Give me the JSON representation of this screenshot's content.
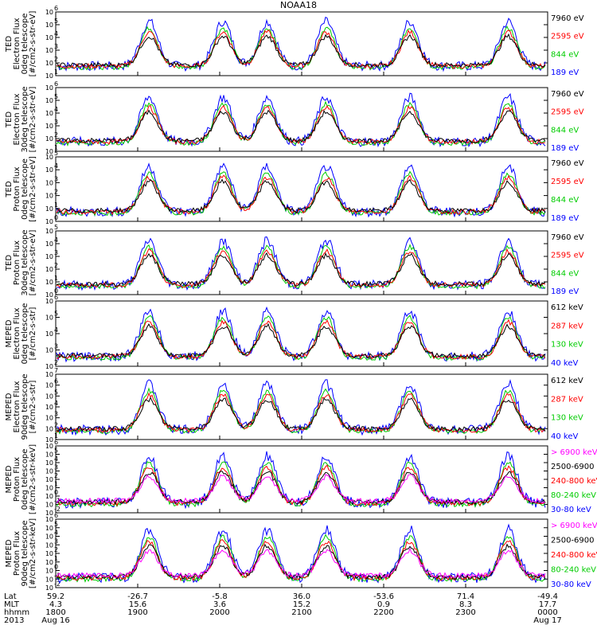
{
  "title": "NOAA18",
  "chart_data": [
    {
      "type": "line",
      "ylabel": [
        "TED",
        "Electron Flux",
        "0deg telescope",
        "[#/cm2-s-str-eV]"
      ],
      "ylog": [
        1,
        6
      ],
      "legend": [
        {
          "label": "7960 eV",
          "color": "#000000"
        },
        {
          "label": "2595 eV",
          "color": "#ff0000"
        },
        {
          "label": "844 eV",
          "color": "#00cc00"
        },
        {
          "label": "189 eV",
          "color": "#0000ff"
        }
      ]
    },
    {
      "type": "line",
      "ylabel": [
        "TED",
        "Electron Flux",
        "30deg telescope",
        "[#/cm2-s-str-eV]"
      ],
      "ylog": [
        1,
        6
      ],
      "legend": [
        {
          "label": "7960 eV",
          "color": "#000000"
        },
        {
          "label": "2595 eV",
          "color": "#ff0000"
        },
        {
          "label": "844 eV",
          "color": "#00cc00"
        },
        {
          "label": "189 eV",
          "color": "#0000ff"
        }
      ]
    },
    {
      "type": "line",
      "ylabel": [
        "TED",
        "Proton Flux",
        "0deg telescope",
        "[#/cm2-s-str-eV]"
      ],
      "ylog": [
        0,
        5
      ],
      "legend": [
        {
          "label": "7960 eV",
          "color": "#000000"
        },
        {
          "label": "2595 eV",
          "color": "#ff0000"
        },
        {
          "label": "844 eV",
          "color": "#00cc00"
        },
        {
          "label": "189 eV",
          "color": "#0000ff"
        }
      ]
    },
    {
      "type": "line",
      "ylabel": [
        "TED",
        "Proton Flux",
        "30deg telescope",
        "[#/cm2-s-str-eV]"
      ],
      "ylog": [
        0,
        5
      ],
      "legend": [
        {
          "label": "7960 eV",
          "color": "#000000"
        },
        {
          "label": "2595 eV",
          "color": "#ff0000"
        },
        {
          "label": "844 eV",
          "color": "#00cc00"
        },
        {
          "label": "189 eV",
          "color": "#0000ff"
        }
      ]
    },
    {
      "type": "line",
      "ylabel": [
        "MEPED",
        "Electron Flux",
        "0deg telescope",
        "[#/cm2-s-str]"
      ],
      "ylog": [
        2,
        6
      ],
      "legend": [
        {
          "label": "612 keV",
          "color": "#000000"
        },
        {
          "label": "287 keV",
          "color": "#ff0000"
        },
        {
          "label": "130 keV",
          "color": "#00cc00"
        },
        {
          "label": "40 keV",
          "color": "#0000ff"
        }
      ]
    },
    {
      "type": "line",
      "ylabel": [
        "MEPED",
        "Electron Flux",
        "90deg telescope",
        "[#/cm2-s-str]"
      ],
      "ylog": [
        1,
        7
      ],
      "legend": [
        {
          "label": "612 keV",
          "color": "#000000"
        },
        {
          "label": "287 keV",
          "color": "#ff0000"
        },
        {
          "label": "130 keV",
          "color": "#00cc00"
        },
        {
          "label": "40 keV",
          "color": "#0000ff"
        }
      ]
    },
    {
      "type": "line",
      "ylabel": [
        "MEPED",
        "Proton Flux",
        "0deg telescope",
        "[#/cm2-s-str-keV]"
      ],
      "ylog": [
        -2,
        6
      ],
      "legend": [
        {
          "label": "> 6900 keV",
          "color": "#ff00ff"
        },
        {
          "label": "2500-6900",
          "color": "#000000"
        },
        {
          "label": "240-800 keV",
          "color": "#ff0000"
        },
        {
          "label": "80-240 keV",
          "color": "#00cc00"
        },
        {
          "label": "30-80 keV",
          "color": "#0000ff"
        }
      ]
    },
    {
      "type": "line",
      "ylabel": [
        "MEPED",
        "Proton Flux",
        "90deg telescope",
        "[#/cm2-s-str-keV]"
      ],
      "ylog": [
        -2,
        6
      ],
      "legend": [
        {
          "label": "> 6900 keV",
          "color": "#ff00ff"
        },
        {
          "label": "2500-6900",
          "color": "#000000"
        },
        {
          "label": "240-800 keV",
          "color": "#ff0000"
        },
        {
          "label": "80-240 keV",
          "color": "#00cc00"
        },
        {
          "label": "30-80 keV",
          "color": "#0000ff"
        }
      ]
    }
  ],
  "time_axis": {
    "row_labels": [
      "Lat",
      "MLT",
      "hhmm",
      "2013"
    ],
    "ticks": [
      {
        "lat": "59.2",
        "mlt": "4.3",
        "hhmm": "1800",
        "date": "Aug 16"
      },
      {
        "lat": "-26.7",
        "mlt": "15.6",
        "hhmm": "1900",
        "date": ""
      },
      {
        "lat": "-5.8",
        "mlt": "3.6",
        "hhmm": "2000",
        "date": ""
      },
      {
        "lat": "36.0",
        "mlt": "15.2",
        "hhmm": "2100",
        "date": ""
      },
      {
        "lat": "-53.6",
        "mlt": "0.9",
        "hhmm": "2200",
        "date": ""
      },
      {
        "lat": "71.4",
        "mlt": "8.3",
        "hhmm": "2300",
        "date": ""
      },
      {
        "lat": "-49.4",
        "mlt": "17.7",
        "hhmm": "0000",
        "date": "Aug 17"
      }
    ]
  }
}
